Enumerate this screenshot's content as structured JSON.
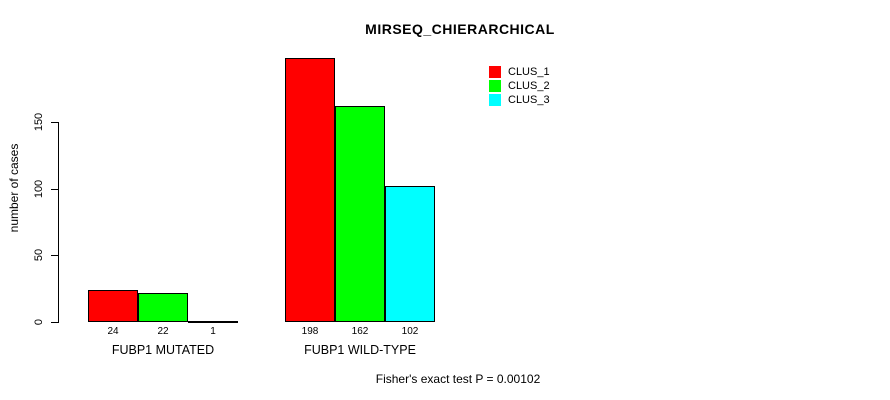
{
  "chart_data": {
    "type": "bar",
    "title": "MIRSEQ_CHIERARCHICAL",
    "xlabel": "",
    "ylabel": "number of cases",
    "yticks": [
      0,
      50,
      100,
      150
    ],
    "ylim": [
      0,
      200
    ],
    "grid": false,
    "legend_position": "top-right",
    "categories": [
      "FUBP1 MUTATED",
      "FUBP1 WILD-TYPE"
    ],
    "series": [
      {
        "name": "CLUS_1",
        "color": "#FF0000",
        "values": [
          24,
          198
        ]
      },
      {
        "name": "CLUS_2",
        "color": "#00FF00",
        "values": [
          22,
          162
        ]
      },
      {
        "name": "CLUS_3",
        "color": "#00FFFF",
        "values": [
          1,
          102
        ]
      }
    ],
    "show_bar_values": true,
    "annotation": "Fisher's exact test P = 0.00102"
  },
  "colors": {
    "background": "#FFFFFF",
    "axis": "#000000",
    "text": "#000000"
  }
}
